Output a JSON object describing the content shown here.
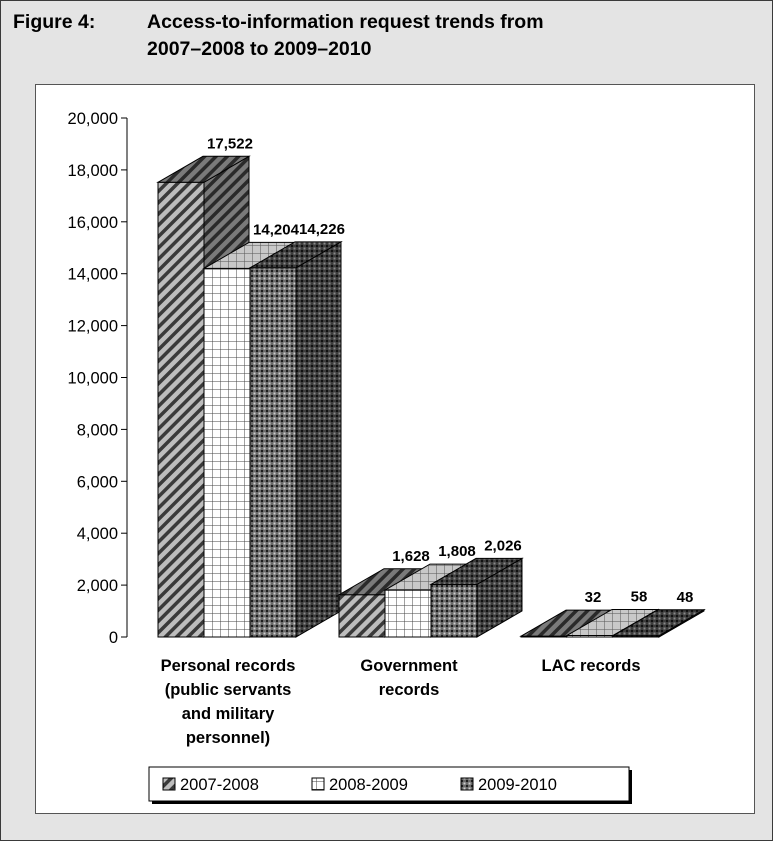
{
  "figure": {
    "number": "Figure 4:",
    "title_line1": "Access-to-information request trends from",
    "title_line2": "2007–2008 to 2009–2010"
  },
  "chart_data": {
    "type": "bar",
    "style": "3d-clustered",
    "categories": [
      [
        "Personal records",
        "(public servants",
        "and military",
        "personnel)"
      ],
      [
        "Government",
        "records"
      ],
      [
        "LAC records"
      ]
    ],
    "series": [
      {
        "name": "2007-2008",
        "values": [
          17522,
          1628,
          32
        ],
        "labels": [
          "17,522",
          "1,628",
          "32"
        ],
        "pattern": "diagonal"
      },
      {
        "name": "2008-2009",
        "values": [
          14204,
          1808,
          58
        ],
        "labels": [
          "14,204",
          "1,808",
          "58"
        ],
        "pattern": "grid"
      },
      {
        "name": "2009-2010",
        "values": [
          14226,
          2026,
          48
        ],
        "labels": [
          "14,226",
          "2,026",
          "48"
        ],
        "pattern": "dots"
      }
    ],
    "yticks": [
      "0",
      "2,000",
      "4,000",
      "6,000",
      "8,000",
      "10,000",
      "12,000",
      "14,000",
      "16,000",
      "18,000",
      "20,000"
    ],
    "ylim": [
      0,
      20000
    ],
    "legend_position": "bottom",
    "grid": false
  }
}
